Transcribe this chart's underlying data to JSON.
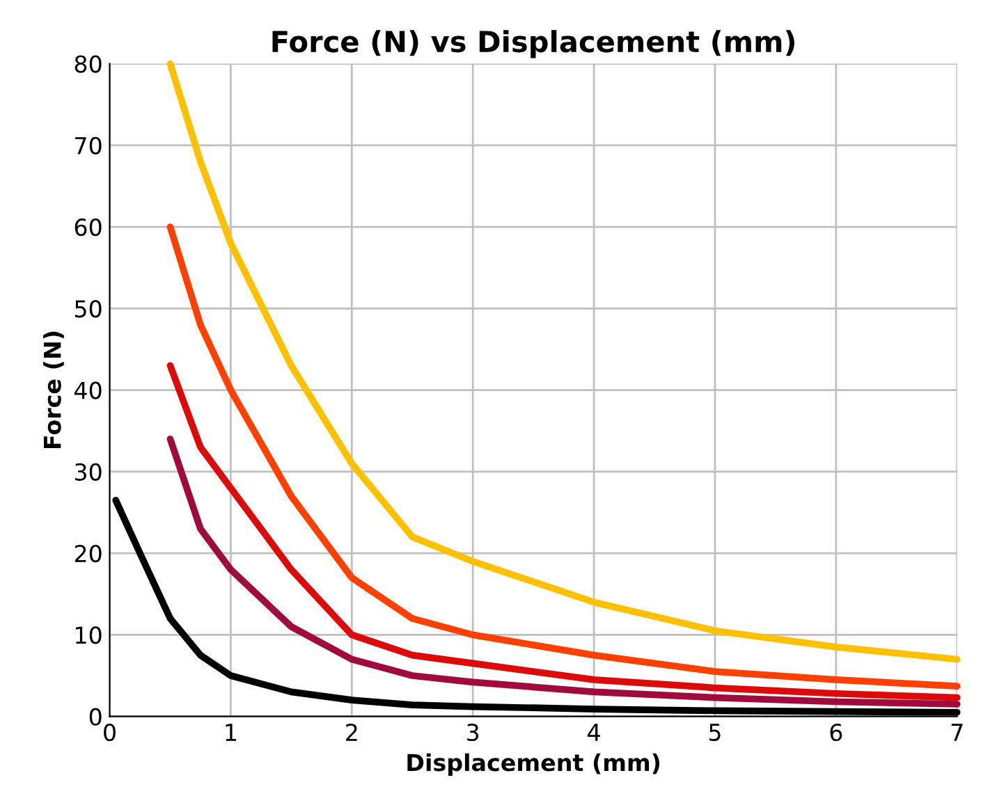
{
  "chart_data": {
    "type": "line",
    "title": "Force (N) vs Displacement (mm)",
    "xlabel": "Displacement (mm)",
    "ylabel": "Force (N)",
    "xlim": [
      0,
      7
    ],
    "xticks": [
      0,
      1,
      2,
      3,
      4,
      5,
      6,
      7
    ],
    "ylim": [
      0,
      80
    ],
    "yticks": [
      0,
      10,
      20,
      30,
      40,
      50,
      60,
      70,
      80
    ],
    "grid": true,
    "legend": false,
    "line_style": "solid",
    "marker": "none",
    "series": [
      {
        "color": "#ffc000",
        "x": [
          0.5,
          0.75,
          1,
          1.5,
          2,
          2.5,
          3,
          4,
          5,
          6,
          7
        ],
        "values": [
          80,
          68,
          58,
          43,
          31,
          22,
          19,
          14,
          10.5,
          8.5,
          7
        ]
      },
      {
        "color": "#ff4000",
        "x": [
          0.5,
          0.75,
          1,
          1.5,
          2,
          2.5,
          3,
          4,
          5,
          6,
          7
        ],
        "values": [
          60,
          48,
          40,
          27,
          17,
          12,
          10,
          7.5,
          5.5,
          4.5,
          3.7
        ]
      },
      {
        "color": "#dd0a0a",
        "x": [
          0.5,
          0.75,
          1,
          1.5,
          2,
          2.5,
          3,
          4,
          5,
          6,
          7
        ],
        "values": [
          43,
          33,
          28,
          18,
          10,
          7.5,
          6.5,
          4.5,
          3.5,
          2.8,
          2.3
        ]
      },
      {
        "color": "#a00a3c",
        "x": [
          0.5,
          0.75,
          1,
          1.5,
          2,
          2.5,
          3,
          4,
          5,
          6,
          7
        ],
        "values": [
          34,
          23,
          18,
          11,
          7,
          5,
          4.2,
          3,
          2.3,
          1.8,
          1.5
        ]
      },
      {
        "color": "#000000",
        "x": [
          0.05,
          0.25,
          0.5,
          0.75,
          1,
          1.5,
          2,
          2.5,
          3,
          4,
          5,
          6,
          7
        ],
        "values": [
          26.5,
          20,
          12,
          7.5,
          5,
          3,
          2,
          1.4,
          1.2,
          0.9,
          0.7,
          0.6,
          0.5
        ]
      }
    ]
  }
}
